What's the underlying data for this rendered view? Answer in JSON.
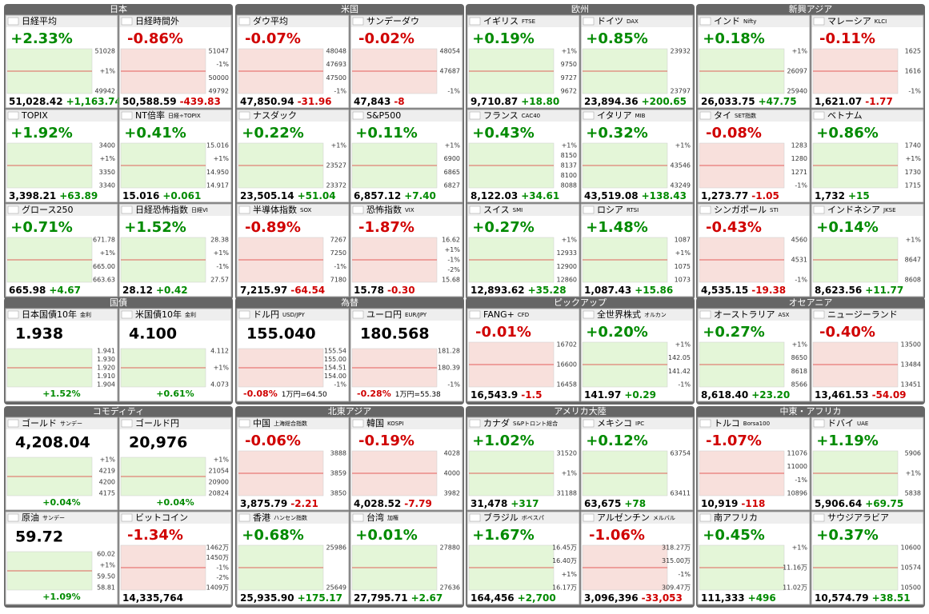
{
  "sections": [
    {
      "groups": [
        {
          "title": "日本",
          "panels": [
            {
              "name": "日経平均",
              "change": "+2.33%",
              "axis": [
                "51028",
                "+1%",
                "49942"
              ],
              "price": "51,028.42",
              "diff": "+1,163.74"
            },
            {
              "name": "日経時間外",
              "change": "-0.86%",
              "axis": [
                "51047",
                "-1%",
                "50000",
                "49792"
              ],
              "price": "50,588.59",
              "diff": "-439.83"
            },
            {
              "name": "TOPIX",
              "change": "+1.92%",
              "axis": [
                "3400",
                "+1%",
                "3350",
                "3340"
              ],
              "price": "3,398.21",
              "diff": "+63.89"
            },
            {
              "name": "NT倍率",
              "code": "日経÷TOPIX",
              "change": "+0.41%",
              "axis": [
                "15.016",
                "+1%",
                "14.950",
                "14.917"
              ],
              "price": "15.016",
              "diff": "+0.061"
            },
            {
              "name": "グロース250",
              "change": "+0.71%",
              "axis": [
                "671.78",
                "+1%",
                "665.00",
                "663.63"
              ],
              "price": "665.98",
              "diff": "+4.67"
            },
            {
              "name": "日経恐怖指数",
              "code": "日経VI",
              "change": "+1.52%",
              "axis": [
                "28.38",
                "+1%",
                "-1%",
                "27.57"
              ],
              "price": "28.12",
              "diff": "+0.42"
            }
          ]
        },
        {
          "title": "米国",
          "panels": [
            {
              "name": "ダウ平均",
              "change": "-0.07%",
              "axis": [
                "48048",
                "47693",
                "47500",
                "-1%"
              ],
              "price": "47,850.94",
              "diff": "-31.96"
            },
            {
              "name": "サンデーダウ",
              "change": "-0.02%",
              "axis": [
                "48054",
                "47687",
                "-1%"
              ],
              "price": "47,843",
              "diff": "-8"
            },
            {
              "name": "ナスダック",
              "change": "+0.22%",
              "axis": [
                "+1%",
                "23527",
                "23372"
              ],
              "price": "23,505.14",
              "diff": "+51.04"
            },
            {
              "name": "S&P500",
              "change": "+0.11%",
              "axis": [
                "+1%",
                "6900",
                "6865",
                "6827"
              ],
              "price": "6,857.12",
              "diff": "+7.40"
            },
            {
              "name": "半導体指数",
              "code": "SOX",
              "change": "-0.89%",
              "axis": [
                "7267",
                "7250",
                "-1%",
                "7180"
              ],
              "price": "7,215.97",
              "diff": "-64.54"
            },
            {
              "name": "恐怖指数",
              "code": "VIX",
              "change": "-1.87%",
              "axis": [
                "16.62",
                "+1%",
                "-1%",
                "-2%",
                "15.68"
              ],
              "price": "15.78",
              "diff": "-0.30"
            }
          ]
        },
        {
          "title": "欧州",
          "panels": [
            {
              "name": "イギリス",
              "code": "FTSE",
              "change": "+0.19%",
              "axis": [
                "+1%",
                "9750",
                "9727",
                "9672"
              ],
              "price": "9,710.87",
              "diff": "+18.80"
            },
            {
              "name": "ドイツ",
              "code": "DAX",
              "change": "+0.85%",
              "axis": [
                "23932",
                "23797"
              ],
              "price": "23,894.36",
              "diff": "+200.65"
            },
            {
              "name": "フランス",
              "code": "CAC40",
              "change": "+0.43%",
              "axis": [
                "+1%",
                "8150",
                "8137",
                "8100",
                "8088"
              ],
              "price": "8,122.03",
              "diff": "+34.61"
            },
            {
              "name": "イタリア",
              "code": "MIB",
              "change": "+0.32%",
              "axis": [
                "+1%",
                "43546",
                "43249"
              ],
              "price": "43,519.08",
              "diff": "+138.43"
            },
            {
              "name": "スイス",
              "code": "SMI",
              "change": "+0.27%",
              "axis": [
                "+1%",
                "12933",
                "12900",
                "12860"
              ],
              "price": "12,893.62",
              "diff": "+35.28"
            },
            {
              "name": "ロシア",
              "code": "RTSI",
              "change": "+1.48%",
              "axis": [
                "1087",
                "+1%",
                "1075",
                "1073"
              ],
              "price": "1,087.43",
              "diff": "+15.86"
            }
          ]
        },
        {
          "title": "新興アジア",
          "panels": [
            {
              "name": "インド",
              "code": "Nifty",
              "change": "+0.18%",
              "axis": [
                "+1%",
                "26097",
                "25940"
              ],
              "price": "26,033.75",
              "diff": "+47.75"
            },
            {
              "name": "マレーシア",
              "code": "KLCI",
              "change": "-0.11%",
              "axis": [
                "1625",
                "1616",
                "-1%"
              ],
              "price": "1,621.07",
              "diff": "-1.77"
            },
            {
              "name": "タイ",
              "code": "SET指数",
              "change": "-0.08%",
              "axis": [
                "1283",
                "1280",
                "1271",
                "-1%"
              ],
              "price": "1,273.77",
              "diff": "-1.05"
            },
            {
              "name": "ベトナム",
              "change": "+0.86%",
              "axis": [
                "1740",
                "+1%",
                "1730",
                "1715"
              ],
              "price": "1,732",
              "diff": "+15"
            },
            {
              "name": "シンガポール",
              "code": "STI",
              "change": "-0.43%",
              "axis": [
                "4560",
                "4531",
                "-1%"
              ],
              "price": "4,535.15",
              "diff": "-19.38"
            },
            {
              "name": "インドネシア",
              "code": "JKSE",
              "change": "+0.14%",
              "axis": [
                "+1%",
                "8647",
                "8608"
              ],
              "price": "8,623.56",
              "diff": "+11.77"
            }
          ]
        }
      ]
    },
    {
      "groups": [
        {
          "title": "国債",
          "panels": [
            {
              "name": "日本国債10年",
              "code": "金利",
              "value": "1.938",
              "axis": [
                "1.941",
                "1.930",
                "1.920",
                "1.910",
                "1.904"
              ],
              "change": "+1.52%"
            },
            {
              "name": "米国債10年",
              "code": "金利",
              "value": "4.100",
              "axis": [
                "4.112",
                "+1%",
                "4.073"
              ],
              "change": "+0.61%"
            }
          ]
        },
        {
          "title": "為替",
          "panels": [
            {
              "name": "ドル円",
              "code": "USD/JPY",
              "value": "155.040",
              "axis": [
                "155.54",
                "155.00",
                "154.51",
                "154.00",
                "-1%"
              ],
              "change": "-0.08%",
              "note": "1万円=64.50"
            },
            {
              "name": "ユーロ円",
              "code": "EUR/JPY",
              "value": "180.568",
              "axis": [
                "181.28",
                "180.39",
                "-1%"
              ],
              "change": "-0.28%",
              "note": "1万円=55.38"
            }
          ]
        },
        {
          "title": "ピックアップ",
          "panels": [
            {
              "name": "FANG+",
              "code": "CFD",
              "change": "-0.01%",
              "axis": [
                "16702",
                "16600",
                "16458"
              ],
              "price": "16,543.9",
              "diff": "-1.5"
            },
            {
              "name": "全世界株式",
              "code": "オルカン",
              "change": "+0.20%",
              "axis": [
                "+1%",
                "142.05",
                "141.42",
                "-1%"
              ],
              "price": "141.97",
              "diff": "+0.29"
            }
          ]
        },
        {
          "title": "オセアニア",
          "panels": [
            {
              "name": "オーストラリア",
              "code": "ASX",
              "change": "+0.27%",
              "axis": [
                "+1%",
                "8650",
                "8618",
                "8566"
              ],
              "price": "8,618.40",
              "diff": "+23.20"
            },
            {
              "name": "ニュージーランド",
              "change": "-0.40%",
              "axis": [
                "13500",
                "13484",
                "13451"
              ],
              "price": "13,461.53",
              "diff": "-54.09"
            }
          ]
        }
      ]
    },
    {
      "groups": [
        {
          "title": "コモディティ",
          "panels": [
            {
              "name": "ゴールド",
              "code": "サンデー",
              "value": "4,208.04",
              "axis": [
                "+1%",
                "4219",
                "4200",
                "4175"
              ],
              "change": "+0.04%"
            },
            {
              "name": "ゴールド円",
              "value": "20,976",
              "axis": [
                "+1%",
                "21054",
                "20900",
                "20824"
              ],
              "change": "+0.04%"
            },
            {
              "name": "原油",
              "code": "サンデー",
              "value": "59.72",
              "axis": [
                "60.02",
                "+1%",
                "59.50",
                "58.81"
              ],
              "change": "+1.09%"
            },
            {
              "name": "ビットコイン",
              "change": "-1.34%",
              "axis": [
                "1462万",
                "1450万",
                "-1%",
                "-2%",
                "1409万"
              ],
              "price": "14,335,764"
            }
          ]
        },
        {
          "title": "北東アジア",
          "panels": [
            {
              "name": "中国",
              "code": "上海総合指数",
              "change": "-0.06%",
              "axis": [
                "3888",
                "3859",
                "3850"
              ],
              "price": "3,875.79",
              "diff": "-2.21"
            },
            {
              "name": "韓国",
              "code": "KOSPI",
              "change": "-0.19%",
              "axis": [
                "4028",
                "4000",
                "3982"
              ],
              "price": "4,028.52",
              "diff": "-7.79"
            },
            {
              "name": "香港",
              "code": "ハンセン指数",
              "change": "+0.68%",
              "axis": [
                "25986",
                "25649"
              ],
              "price": "25,935.90",
              "diff": "+175.17"
            },
            {
              "name": "台湾",
              "code": "加権",
              "change": "+0.01%",
              "axis": [
                "27880",
                "27636"
              ],
              "price": "27,795.71",
              "diff": "+2.67"
            }
          ]
        },
        {
          "title": "アメリカ大陸",
          "panels": [
            {
              "name": "カナダ",
              "code": "S&Pトロント総合",
              "change": "+1.02%",
              "axis": [
                "31520",
                "+1%",
                "31188"
              ],
              "price": "31,478",
              "diff": "+317"
            },
            {
              "name": "メキシコ",
              "code": "IPC",
              "change": "+0.12%",
              "axis": [
                "63754",
                "63411"
              ],
              "price": "63,675",
              "diff": "+78"
            },
            {
              "name": "ブラジル",
              "code": "ボベスパ",
              "change": "+1.67%",
              "axis": [
                "16.45万",
                "16.40万",
                "+1%",
                "16.17万"
              ],
              "price": "164,456",
              "diff": "+2,700"
            },
            {
              "name": "アルゼンチン",
              "code": "メルバル",
              "change": "-1.06%",
              "axis": [
                "318.27万",
                "315.00万",
                "-1%",
                "309.47万"
              ],
              "price": "3,096,396",
              "diff": "-33,053"
            }
          ]
        },
        {
          "title": "中東・アフリカ",
          "panels": [
            {
              "name": "トルコ",
              "code": "Borsa100",
              "change": "-1.07%",
              "axis": [
                "11076",
                "11000",
                "-1%",
                "10896"
              ],
              "price": "10,919",
              "diff": "-118"
            },
            {
              "name": "ドバイ",
              "code": "UAE",
              "change": "+1.19%",
              "axis": [
                "5906",
                "+1%",
                "5838"
              ],
              "price": "5,906.64",
              "diff": "+69.75"
            },
            {
              "name": "南アフリカ",
              "change": "+0.45%",
              "axis": [
                "+1%",
                "11.16万",
                "11.02万"
              ],
              "price": "111,333",
              "diff": "+496"
            },
            {
              "name": "サウジアラビア",
              "change": "+0.37%",
              "axis": [
                "10600",
                "10574",
                "10500"
              ],
              "price": "10,574.79",
              "diff": "+38.51"
            }
          ]
        }
      ]
    }
  ]
}
